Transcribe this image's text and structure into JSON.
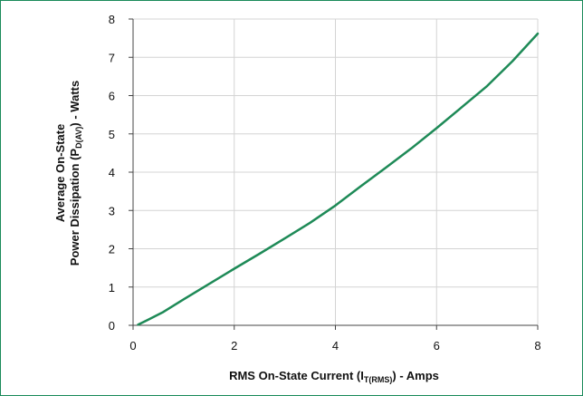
{
  "chart_data": {
    "type": "line",
    "title": "",
    "xlabel": {
      "prefix": "RMS On-State Current (I",
      "subscript": "T(RMS)",
      "suffix": ") - Amps"
    },
    "ylabel": {
      "line1": "Average On-State",
      "line2_prefix": "Power Dissipation (P",
      "line2_subscript": "D(AV)",
      "line2_suffix": ") - Watts"
    },
    "xlim": [
      0,
      8
    ],
    "ylim": [
      0,
      8
    ],
    "x_ticks": [
      "0",
      "2",
      "4",
      "6",
      "8"
    ],
    "y_ticks": [
      "0",
      "1",
      "2",
      "3",
      "4",
      "5",
      "6",
      "7",
      "8"
    ],
    "grid": true,
    "legend": "none",
    "series": [
      {
        "color": "#1e8a57",
        "x": [
          0.1,
          0.3,
          0.6,
          1.0,
          1.5,
          2.0,
          2.5,
          3.0,
          3.5,
          4.0,
          4.5,
          5.0,
          5.5,
          6.0,
          6.5,
          7.0,
          7.5,
          8.0
        ],
        "y": [
          0.02,
          0.15,
          0.35,
          0.68,
          1.08,
          1.48,
          1.87,
          2.27,
          2.68,
          3.13,
          3.63,
          4.12,
          4.62,
          5.15,
          5.7,
          6.25,
          6.9,
          7.62
        ]
      }
    ]
  }
}
